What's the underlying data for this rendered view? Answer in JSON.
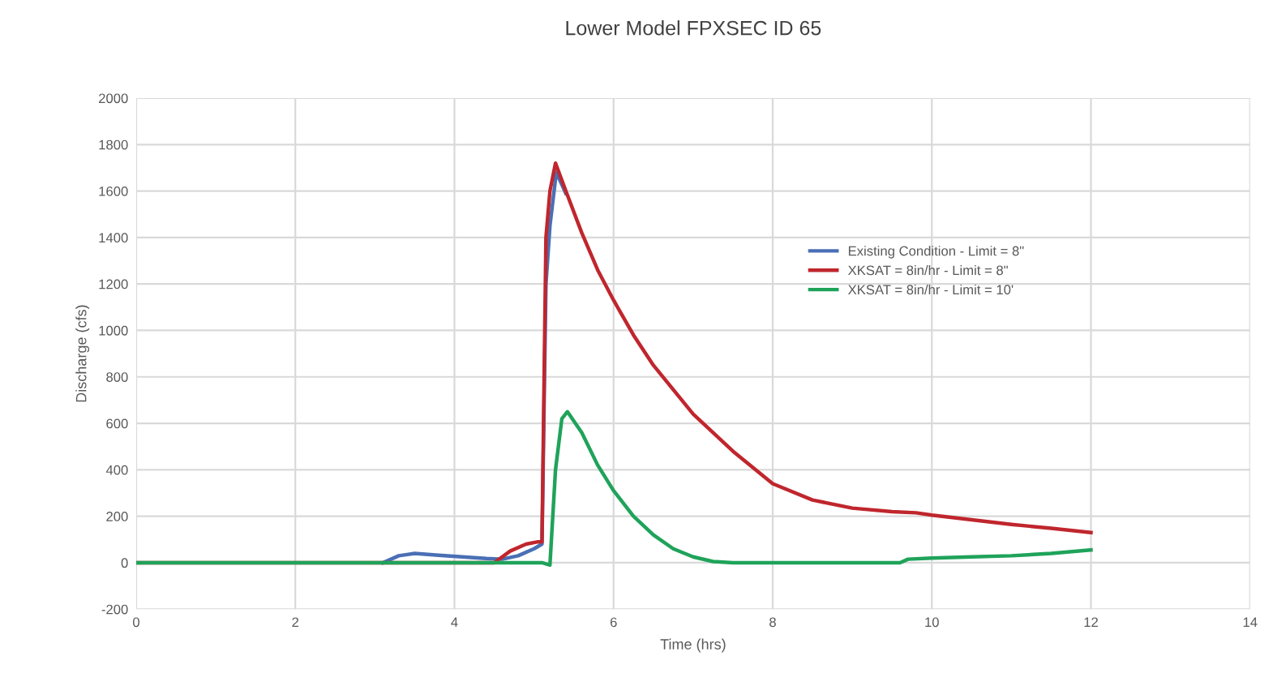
{
  "chart_data": {
    "type": "line",
    "title": "Lower Model FPXSEC ID 65",
    "xlabel": "Time (hrs)",
    "ylabel": "Discharge (cfs)",
    "xlim": [
      0,
      14
    ],
    "xticks": [
      0,
      2,
      4,
      6,
      8,
      10,
      12,
      14
    ],
    "ylim": [
      -200,
      2000
    ],
    "yticks": [
      -200,
      0,
      200,
      400,
      600,
      800,
      1000,
      1200,
      1400,
      1600,
      1800,
      2000
    ],
    "grid": true,
    "legend": "top right",
    "marker": "none",
    "line_style": "solid",
    "series": [
      {
        "name": "Existing Condition - Limit = 8\"",
        "color": "#4a6fb5",
        "x": [
          3.1,
          3.3,
          3.5,
          3.8,
          4.1,
          4.4,
          4.6,
          4.8,
          5.0,
          5.1,
          5.15,
          5.2,
          5.28,
          5.4
        ],
        "values": [
          0,
          30,
          40,
          32,
          25,
          18,
          15,
          30,
          60,
          80,
          1200,
          1450,
          1680,
          1590
        ]
      },
      {
        "name": "XKSAT = 8in/hr - Limit = 8\"",
        "color": "#c0262d",
        "x": [
          0,
          4.5,
          4.7,
          4.9,
          5.05,
          5.1,
          5.15,
          5.2,
          5.27,
          5.4,
          5.6,
          5.8,
          6,
          6.25,
          6.5,
          7,
          7.5,
          8,
          8.5,
          9,
          9.5,
          9.8,
          10,
          10.5,
          11,
          11.5,
          12
        ],
        "values": [
          0,
          0,
          50,
          80,
          90,
          90,
          1400,
          1600,
          1720,
          1600,
          1420,
          1260,
          1130,
          980,
          850,
          640,
          480,
          340,
          270,
          235,
          220,
          215,
          205,
          185,
          165,
          148,
          130
        ]
      },
      {
        "name": "XKSAT = 8in/hr - Limit = 10'",
        "color": "#1fa35a",
        "x": [
          0,
          5.1,
          5.2,
          5.27,
          5.35,
          5.42,
          5.6,
          5.8,
          6,
          6.25,
          6.5,
          6.75,
          7,
          7.25,
          7.5,
          9.6,
          9.7,
          10,
          10.5,
          11,
          11.5,
          12
        ],
        "values": [
          0,
          0,
          -10,
          400,
          620,
          650,
          560,
          420,
          310,
          200,
          120,
          60,
          25,
          5,
          0,
          0,
          15,
          20,
          25,
          30,
          40,
          55
        ]
      }
    ]
  }
}
